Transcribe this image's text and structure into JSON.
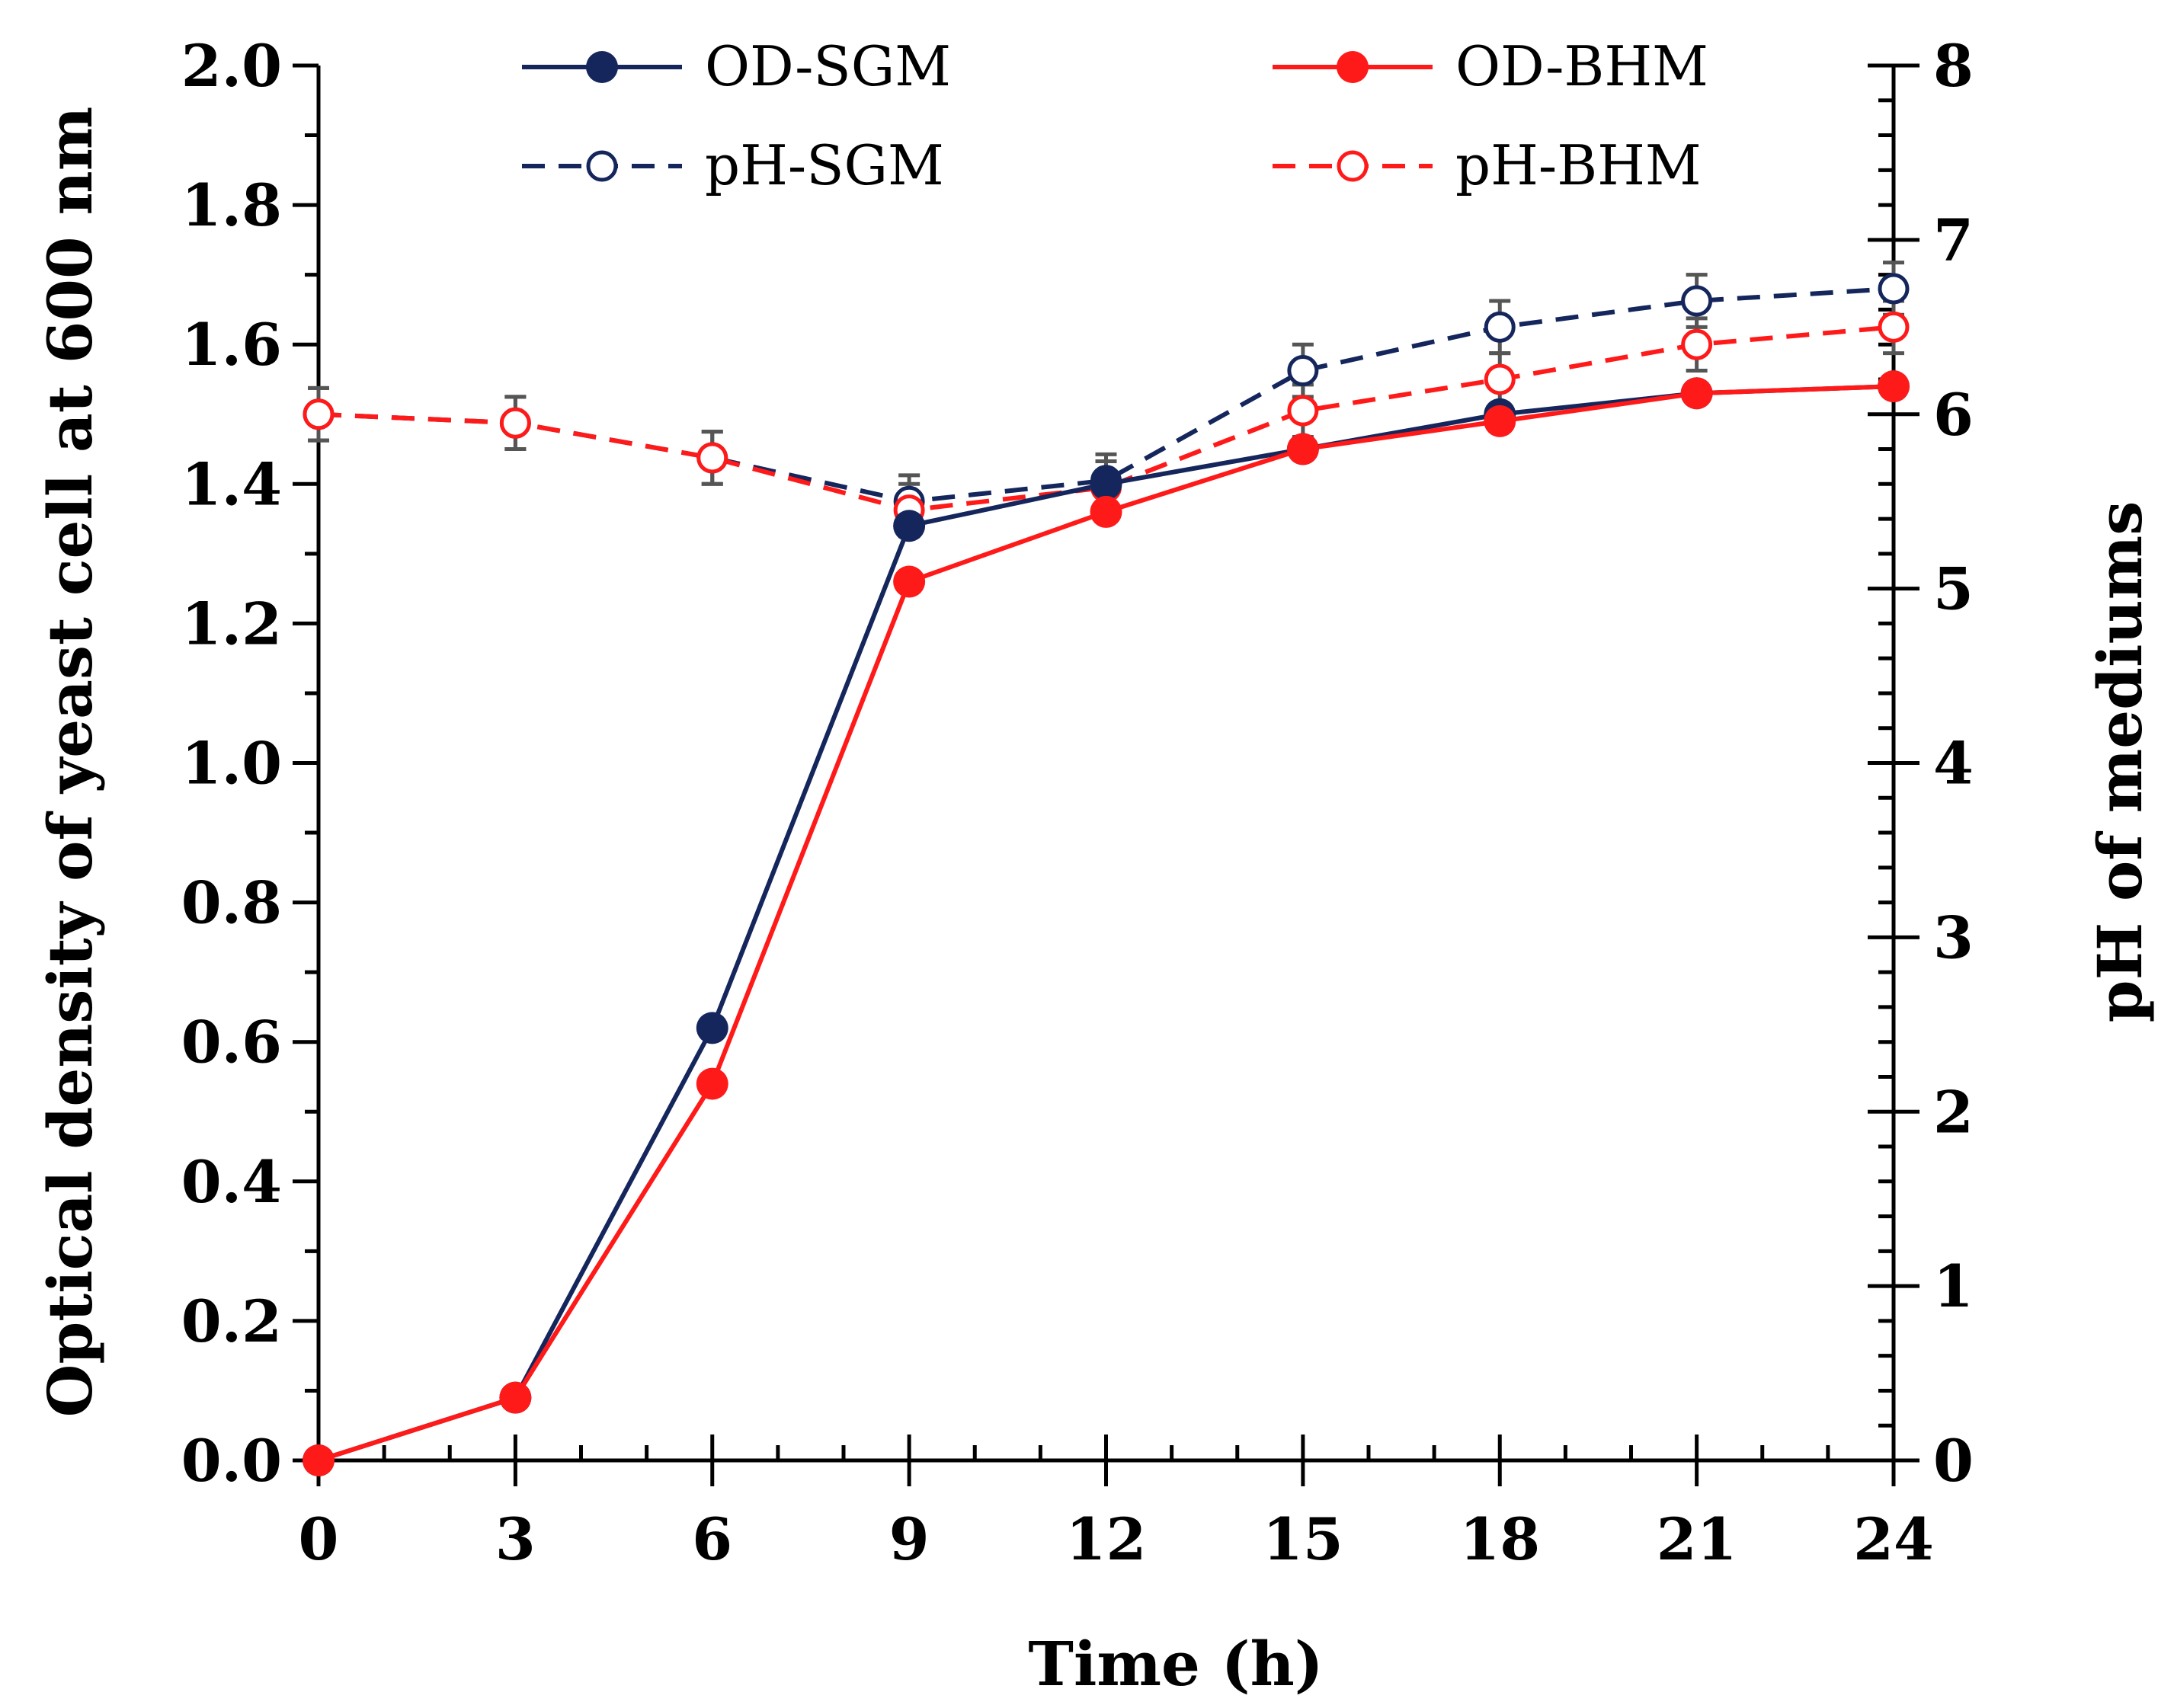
{
  "chart_data": {
    "type": "line",
    "x": [
      0,
      3,
      6,
      9,
      12,
      15,
      18,
      21,
      24
    ],
    "xlabel": "Time (h)",
    "ylabel": "Optical density of yeast cell at 600 nm",
    "y2label": "pH of mediums",
    "xlim": [
      0,
      24
    ],
    "ylim": [
      0,
      2.0
    ],
    "y2lim": [
      0,
      8
    ],
    "x_ticks": [
      "0",
      "3",
      "6",
      "9",
      "12",
      "15",
      "18",
      "21",
      "24"
    ],
    "y_ticks": [
      "0.0",
      "0.2",
      "0.4",
      "0.6",
      "0.8",
      "1.0",
      "1.2",
      "1.4",
      "1.6",
      "1.8",
      "2.0"
    ],
    "y2_ticks": [
      "0",
      "1",
      "2",
      "3",
      "4",
      "5",
      "6",
      "7",
      "8"
    ],
    "grid": false,
    "legend_position": "top",
    "series": [
      {
        "name": "OD-SGM",
        "axis": "left",
        "color": "#14265c",
        "style": "solid",
        "marker": "filled",
        "values": [
          0.0,
          0.09,
          0.62,
          1.34,
          1.4,
          1.45,
          1.5,
          1.53,
          1.54
        ]
      },
      {
        "name": "OD-BHM",
        "axis": "left",
        "color": "#ff1a1a",
        "style": "solid",
        "marker": "filled",
        "values": [
          0.0,
          0.09,
          0.54,
          1.26,
          1.36,
          1.45,
          1.49,
          1.53,
          1.54
        ]
      },
      {
        "name": "pH-SGM",
        "axis": "right",
        "color": "#14265c",
        "style": "dashed",
        "marker": "open",
        "values": [
          6.0,
          5.95,
          5.75,
          5.5,
          5.62,
          6.25,
          6.5,
          6.65,
          6.72
        ],
        "errors": [
          0.15,
          0.15,
          0.15,
          0.15,
          0.15,
          0.15,
          0.15,
          0.15,
          0.15
        ]
      },
      {
        "name": "pH-BHM",
        "axis": "right",
        "color": "#ff1a1a",
        "style": "dashed",
        "marker": "open",
        "values": [
          6.0,
          5.95,
          5.75,
          5.45,
          5.58,
          6.02,
          6.2,
          6.4,
          6.5
        ],
        "errors": [
          0.15,
          0.15,
          0.15,
          0.15,
          0.15,
          0.15,
          0.15,
          0.15,
          0.15
        ]
      }
    ]
  }
}
